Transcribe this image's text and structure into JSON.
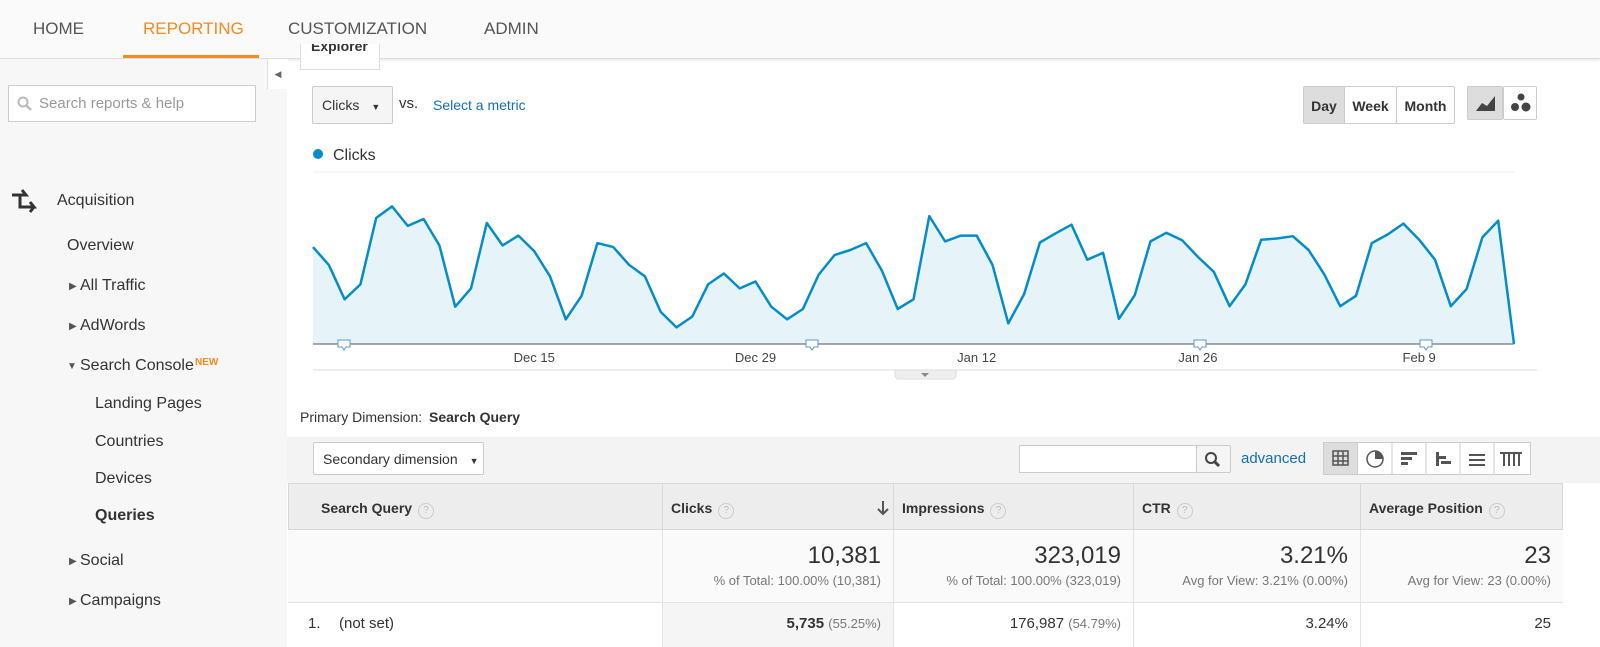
{
  "nav": {
    "tabs": [
      "HOME",
      "REPORTING",
      "CUSTOMIZATION",
      "ADMIN"
    ]
  },
  "sidebar": {
    "search_placeholder": "Search reports & help",
    "section": "Acquisition",
    "items": [
      "Overview",
      "All Traffic",
      "AdWords",
      "Search Console",
      "Landing Pages",
      "Countries",
      "Devices",
      "Queries",
      "Social",
      "Campaigns"
    ],
    "badge": "NEW"
  },
  "explorer": {
    "tab": "Explorer",
    "metric": "Clicks",
    "vs": "vs.",
    "select_metric": "Select a metric",
    "periods": [
      "Day",
      "Week",
      "Month"
    ]
  },
  "chart": {
    "type": "line",
    "categories": [
      null,
      null,
      null,
      null,
      null,
      null,
      null,
      null,
      null,
      null,
      null,
      null,
      null,
      null,
      "Dec 15",
      null,
      null,
      null,
      null,
      null,
      null,
      null,
      null,
      null,
      null,
      null,
      null,
      null,
      "Dec 29",
      null,
      null,
      null,
      null,
      null,
      null,
      null,
      null,
      null,
      null,
      null,
      null,
      null,
      "Jan 12",
      null,
      null,
      null,
      null,
      null,
      null,
      null,
      null,
      null,
      null,
      null,
      null,
      null,
      "Jan 26",
      null,
      null,
      null,
      null,
      null,
      null,
      null,
      null,
      null,
      null,
      null,
      null,
      null,
      "Feb 9",
      null,
      null,
      null,
      null,
      null,
      null
    ],
    "series": [
      {
        "name": "Clicks",
        "color": "#058dc7",
        "values": [
          169,
          138,
          78,
          104,
          220,
          240,
          206,
          218,
          172,
          65,
          97,
          211,
          172,
          189,
          162,
          118,
          43,
          84,
          176,
          169,
          138,
          118,
          56,
          29,
          48,
          104,
          123,
          97,
          109,
          65,
          43,
          61,
          121,
          155,
          164,
          176,
          128,
          61,
          78,
          223,
          179,
          189,
          189,
          138,
          36,
          87,
          177,
          193,
          208,
          147,
          159,
          44,
          85,
          179,
          194,
          181,
          152,
          126,
          66,
          104,
          182,
          184,
          188,
          164,
          121,
          66,
          84,
          176,
          191,
          210,
          182,
          147,
          66,
          96,
          186,
          215,
          0
        ]
      }
    ],
    "ylim": [
      0,
      300
    ],
    "grid": true
  },
  "primary_dimension": {
    "label": "Primary Dimension:",
    "value": "Search Query"
  },
  "toolbar": {
    "secondary": "Secondary dimension",
    "advanced": "advanced"
  },
  "table": {
    "columns": [
      "Search Query",
      "Clicks",
      "Impressions",
      "CTR",
      "Average Position"
    ],
    "help": "?",
    "totals": [
      {
        "value": "10,381",
        "note": "% of Total: 100.00% (10,381)"
      },
      {
        "value": "323,019",
        "note": "% of Total: 100.00% (323,019)"
      },
      {
        "value": "3.21%",
        "note": "Avg for View: 3.21% (0.00%)"
      },
      {
        "value": "23",
        "note": "Avg for View: 23 (0.00%)"
      }
    ],
    "rows": [
      {
        "index": "1.",
        "query": "(not set)",
        "cells": [
          {
            "value": "5,735",
            "pct": "(55.25%)"
          },
          {
            "value": "176,987",
            "pct": "(54.79%)"
          },
          {
            "value": "3.24%"
          },
          {
            "value": "25"
          }
        ]
      }
    ]
  }
}
